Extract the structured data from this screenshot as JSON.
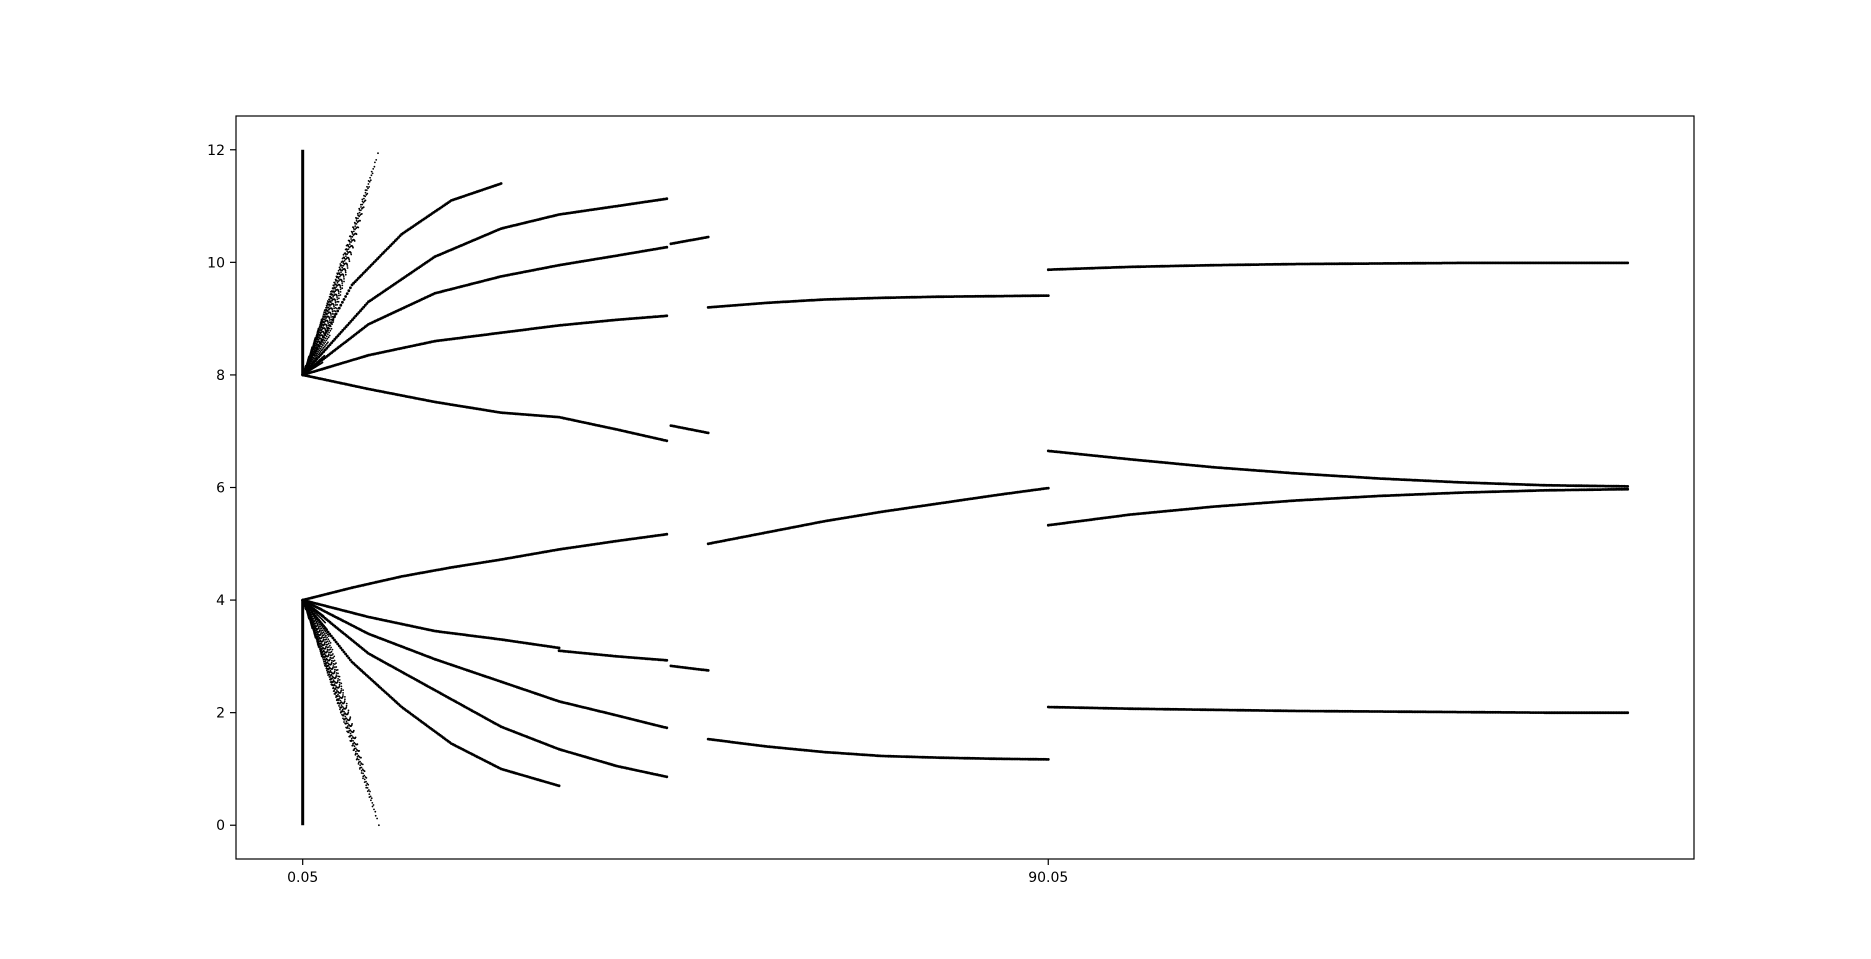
{
  "chart_data": {
    "type": "scatter",
    "title": "",
    "xlabel": "",
    "ylabel": "",
    "xlim": [
      -8,
      168
    ],
    "ylim": [
      -0.6,
      12.6
    ],
    "grid": false,
    "legend": "none",
    "x_ticks": [
      {
        "value": 0.05,
        "label": "0.05"
      },
      {
        "value": 90.05,
        "label": "90.05"
      }
    ],
    "y_ticks": [
      {
        "value": 0,
        "label": "0"
      },
      {
        "value": 2,
        "label": "2"
      },
      {
        "value": 4,
        "label": "4"
      },
      {
        "value": 6,
        "label": "6"
      },
      {
        "value": 8,
        "label": "8"
      },
      {
        "value": 10,
        "label": "10"
      },
      {
        "value": 12,
        "label": "12"
      }
    ],
    "marker_color": "#000000",
    "series": [
      {
        "points": [
          [
            0.05,
            4.0
          ],
          [
            6,
            4.22
          ],
          [
            12,
            4.42
          ],
          [
            18,
            4.58
          ],
          [
            24,
            4.72
          ],
          [
            31,
            4.9
          ],
          [
            38,
            5.05
          ],
          [
            44,
            5.17
          ]
        ]
      },
      {
        "points": [
          [
            49,
            5.0
          ],
          [
            56,
            5.2
          ],
          [
            63,
            5.4
          ],
          [
            70,
            5.57
          ],
          [
            77,
            5.72
          ],
          [
            84,
            5.87
          ],
          [
            90.05,
            5.99
          ]
        ]
      },
      {
        "points": [
          [
            0.05,
            4.0
          ],
          [
            8,
            3.7
          ],
          [
            16,
            3.45
          ],
          [
            24,
            3.3
          ],
          [
            31,
            3.15
          ]
        ]
      },
      {
        "points": [
          [
            31,
            3.1
          ],
          [
            38,
            3.0
          ],
          [
            44,
            2.93
          ]
        ]
      },
      {
        "points": [
          [
            44.5,
            2.83
          ],
          [
            49,
            2.75
          ]
        ]
      },
      {
        "points": [
          [
            0.05,
            4.0
          ],
          [
            8,
            3.4
          ],
          [
            16,
            2.95
          ],
          [
            24,
            2.55
          ],
          [
            31,
            2.2
          ],
          [
            38,
            1.95
          ],
          [
            44,
            1.73
          ]
        ]
      },
      {
        "points": [
          [
            49,
            1.53
          ],
          [
            56,
            1.4
          ],
          [
            63,
            1.3
          ],
          [
            70,
            1.23
          ],
          [
            77,
            1.2
          ],
          [
            84,
            1.18
          ],
          [
            90.05,
            1.17
          ]
        ]
      },
      {
        "points": [
          [
            0.05,
            4.0
          ],
          [
            8,
            3.05
          ],
          [
            16,
            2.4
          ],
          [
            24,
            1.75
          ],
          [
            31,
            1.35
          ],
          [
            38,
            1.05
          ],
          [
            44,
            0.86
          ]
        ]
      },
      {
        "points": [
          [
            0.05,
            4.0
          ],
          [
            6,
            2.9
          ],
          [
            12,
            2.1
          ],
          [
            18,
            1.45
          ],
          [
            24,
            1.0
          ],
          [
            31,
            0.7
          ]
        ]
      },
      {
        "points": [
          [
            0.05,
            8.0
          ],
          [
            8,
            7.75
          ],
          [
            16,
            7.52
          ],
          [
            24,
            7.33
          ],
          [
            31,
            7.25
          ],
          [
            38,
            7.03
          ],
          [
            44,
            6.83
          ]
        ]
      },
      {
        "points": [
          [
            44.5,
            7.1
          ],
          [
            49,
            6.97
          ]
        ]
      },
      {
        "points": [
          [
            0.05,
            8.0
          ],
          [
            8,
            8.35
          ],
          [
            16,
            8.6
          ],
          [
            24,
            8.75
          ],
          [
            31,
            8.88
          ],
          [
            38,
            8.98
          ],
          [
            44,
            9.05
          ]
        ]
      },
      {
        "points": [
          [
            49,
            9.2
          ],
          [
            56,
            9.28
          ],
          [
            63,
            9.34
          ],
          [
            70,
            9.37
          ],
          [
            77,
            9.39
          ],
          [
            84,
            9.4
          ],
          [
            90.05,
            9.41
          ]
        ]
      },
      {
        "points": [
          [
            0.05,
            8.0
          ],
          [
            8,
            8.9
          ],
          [
            16,
            9.45
          ],
          [
            24,
            9.75
          ],
          [
            31,
            9.95
          ],
          [
            38,
            10.12
          ],
          [
            44,
            10.27
          ]
        ]
      },
      {
        "points": [
          [
            44.5,
            10.33
          ],
          [
            49,
            10.45
          ]
        ]
      },
      {
        "points": [
          [
            0.05,
            8.0
          ],
          [
            8,
            9.3
          ],
          [
            16,
            10.1
          ],
          [
            24,
            10.6
          ],
          [
            31,
            10.85
          ],
          [
            38,
            11.0
          ],
          [
            44,
            11.13
          ]
        ]
      },
      {
        "points": [
          [
            0.05,
            8.0
          ],
          [
            6,
            9.6
          ],
          [
            12,
            10.5
          ],
          [
            18,
            11.1
          ],
          [
            24,
            11.4
          ]
        ]
      },
      {
        "points": [
          [
            90.05,
            9.87
          ],
          [
            100,
            9.92
          ],
          [
            110,
            9.95
          ],
          [
            120,
            9.97
          ],
          [
            130,
            9.98
          ],
          [
            140,
            9.99
          ],
          [
            150,
            9.99
          ],
          [
            160,
            9.99
          ]
        ]
      },
      {
        "points": [
          [
            90.05,
            6.65
          ],
          [
            100,
            6.5
          ],
          [
            110,
            6.36
          ],
          [
            120,
            6.25
          ],
          [
            130,
            6.16
          ],
          [
            140,
            6.09
          ],
          [
            150,
            6.04
          ],
          [
            160,
            6.02
          ]
        ]
      },
      {
        "points": [
          [
            90.05,
            5.33
          ],
          [
            100,
            5.52
          ],
          [
            110,
            5.66
          ],
          [
            120,
            5.77
          ],
          [
            130,
            5.85
          ],
          [
            140,
            5.91
          ],
          [
            150,
            5.95
          ],
          [
            160,
            5.97
          ]
        ]
      },
      {
        "points": [
          [
            90.05,
            2.1
          ],
          [
            100,
            2.07
          ],
          [
            110,
            2.05
          ],
          [
            120,
            2.03
          ],
          [
            130,
            2.02
          ],
          [
            140,
            2.01
          ],
          [
            150,
            2.0
          ],
          [
            160,
            2.0
          ]
        ]
      }
    ]
  }
}
